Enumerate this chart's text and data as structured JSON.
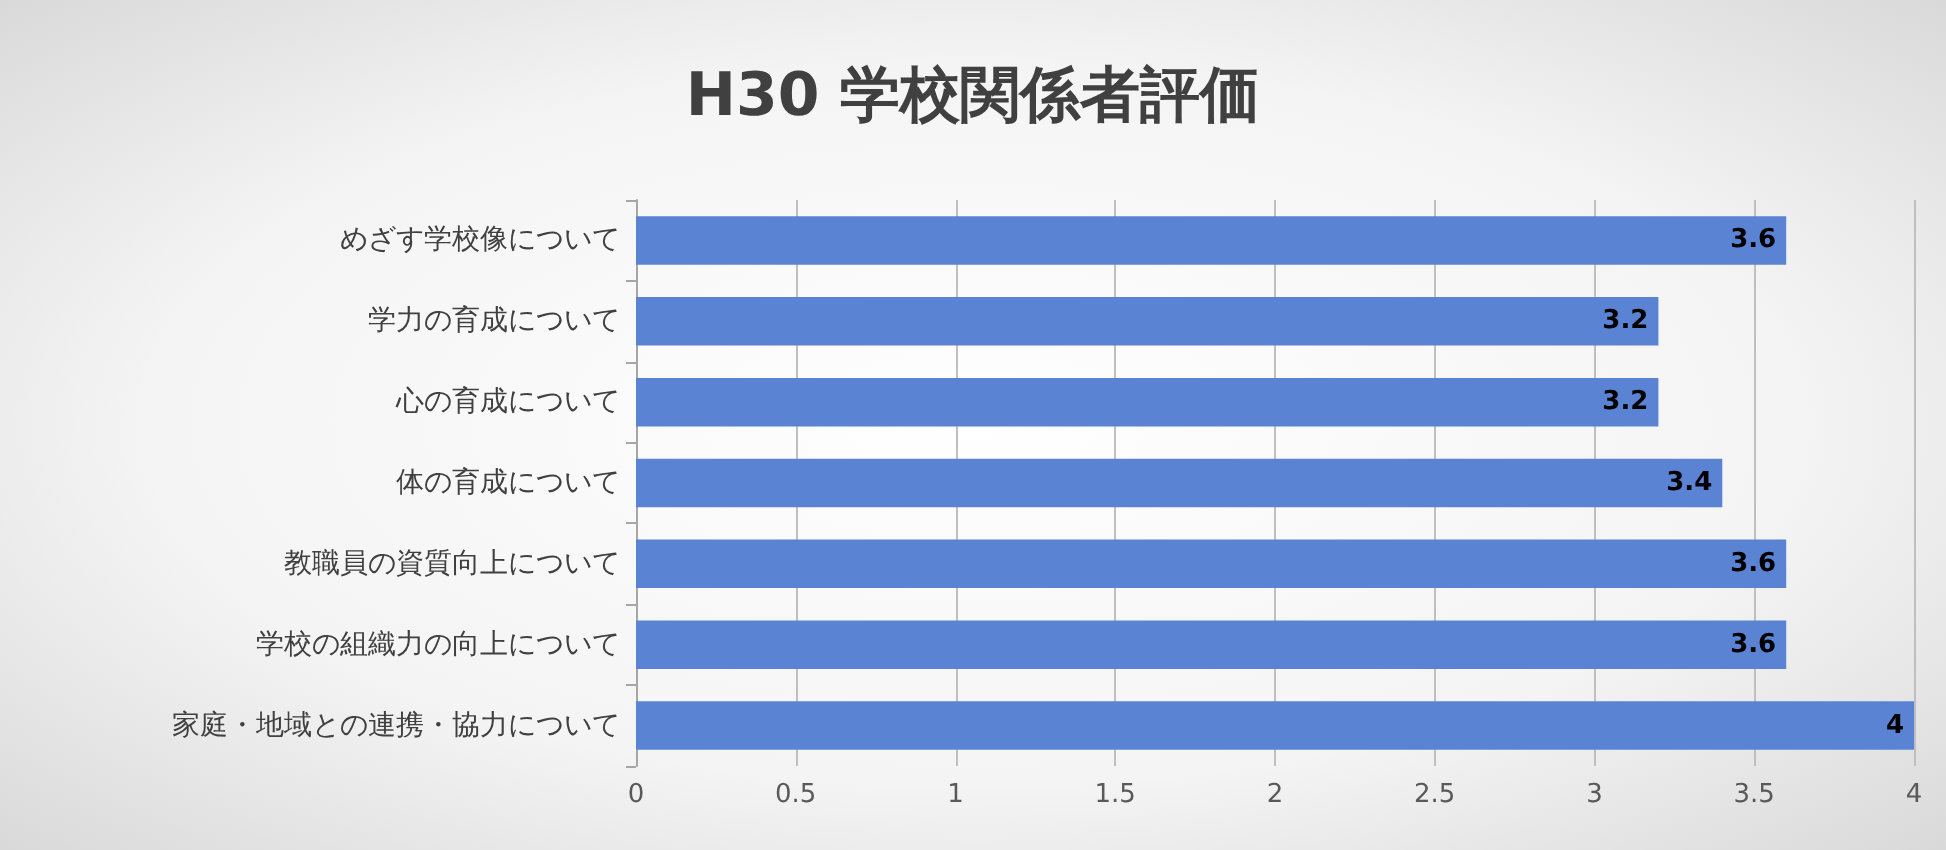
{
  "chart_data": {
    "type": "bar",
    "orientation": "horizontal",
    "title": "H30 学校関係者評価",
    "categories": [
      "めざす学校像について",
      "学力の育成について",
      "心の育成について",
      "体の育成について",
      "教職員の資質向上について",
      "学校の組織力の向上について",
      "家庭・地域との連携・協力について"
    ],
    "values": [
      3.6,
      3.2,
      3.2,
      3.4,
      3.6,
      3.6,
      4
    ],
    "color": "#5b83d3",
    "xlim": [
      0,
      4
    ],
    "xticks": [
      0,
      0.5,
      1,
      1.5,
      2,
      2.5,
      3,
      3.5,
      4
    ],
    "grid": "x",
    "data_labels": true
  }
}
